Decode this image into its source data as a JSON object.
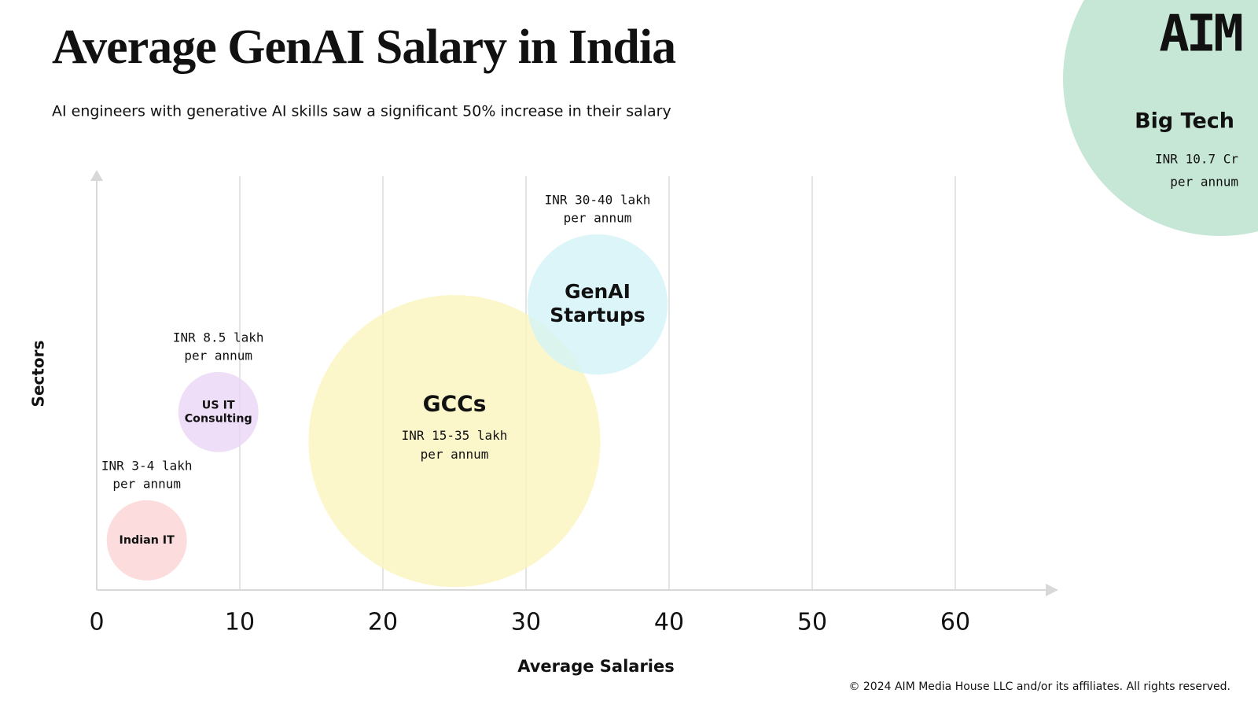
{
  "chart_data": {
    "type": "bubble",
    "title": "Average GenAI Salary in India",
    "subtitle": "AI engineers with generative AI skills saw a significant 50% increase in their salary",
    "x_label": "Average Salaries",
    "y_label": "Sectors",
    "xlim": [
      0,
      66
    ],
    "xticks": [
      0,
      10,
      20,
      30,
      40,
      50,
      60
    ],
    "ylim": [
      0,
      10
    ],
    "grid": true,
    "bubbles": [
      {
        "name": [
          "Indian IT"
        ],
        "label": [
          "INR 3-4 lakh",
          "per annum"
        ],
        "x": 3.5,
        "y": 1.2,
        "size": 2.8,
        "color": "#fbd3d3"
      },
      {
        "name": [
          "US IT",
          "Consulting"
        ],
        "label": [
          "INR 8.5 lakh",
          "per annum"
        ],
        "x": 8.5,
        "y": 4.3,
        "size": 2.8,
        "color": "#ebd6f5"
      },
      {
        "name": [
          "GCCs"
        ],
        "label": [
          "INR 15-35 lakh",
          "per annum"
        ],
        "x": 25,
        "y": 3.6,
        "size": 10.2,
        "color": "#fbf5be"
      },
      {
        "name": [
          "GenAI",
          "Startups"
        ],
        "label": [
          "INR 30-40 lakh",
          "per annum"
        ],
        "x": 35,
        "y": 6.9,
        "size": 4.9,
        "color": "#d3f3f6"
      }
    ],
    "callout": {
      "name": "Big Tech",
      "label": [
        "INR 10.7 Cr",
        "per annum"
      ],
      "color": "#c7e7d6"
    },
    "logo": "AIM",
    "footer": "© 2024 AIM Media House LLC and/or its affiliates. All rights reserved."
  }
}
